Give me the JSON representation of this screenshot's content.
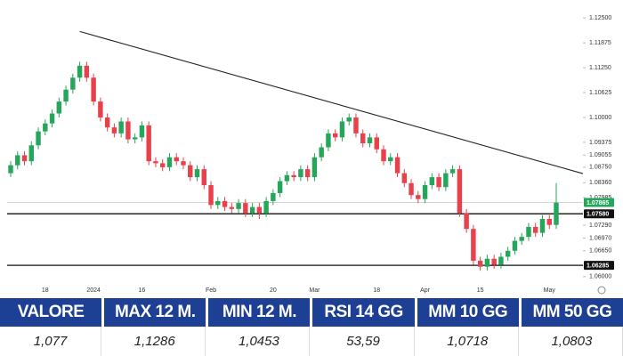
{
  "chart_data": {
    "type": "candlestick",
    "categories": [
      null,
      null,
      null,
      null,
      null,
      "18",
      null,
      null,
      null,
      null,
      null,
      null,
      "2024",
      null,
      null,
      null,
      null,
      null,
      null,
      "16",
      null,
      null,
      null,
      null,
      null,
      null,
      null,
      null,
      null,
      "Feb",
      null,
      null,
      null,
      null,
      null,
      null,
      null,
      null,
      "20",
      null,
      null,
      null,
      null,
      null,
      "Mar",
      null,
      null,
      null,
      null,
      null,
      null,
      null,
      null,
      "18",
      null,
      null,
      null,
      null,
      null,
      null,
      "Apr",
      null,
      null,
      null,
      null,
      null,
      null,
      null,
      "15",
      null,
      null,
      null,
      null,
      null,
      null,
      null,
      null,
      null,
      "May",
      null
    ],
    "open": [
      1.086,
      1.088,
      1.0905,
      1.089,
      1.093,
      1.0965,
      1.0985,
      1.101,
      1.104,
      1.107,
      1.11,
      1.113,
      1.11,
      1.104,
      1.1,
      1.0975,
      1.096,
      1.099,
      1.0945,
      1.095,
      1.098,
      1.089,
      1.0885,
      1.0875,
      1.09,
      1.089,
      1.088,
      1.085,
      1.087,
      1.083,
      1.078,
      1.079,
      1.0775,
      1.077,
      1.0785,
      1.076,
      1.0775,
      1.076,
      1.079,
      1.081,
      1.084,
      1.0855,
      1.085,
      1.087,
      1.085,
      1.09,
      1.0925,
      1.096,
      1.095,
      1.099,
      1.1,
      1.096,
      1.0935,
      1.095,
      1.092,
      1.089,
      1.09,
      1.086,
      1.0835,
      1.0805,
      1.0795,
      1.083,
      1.085,
      1.0825,
      1.086,
      1.087,
      1.076,
      1.072,
      1.064,
      1.0625,
      1.0645,
      1.063,
      1.065,
      1.0665,
      1.069,
      1.07,
      1.0725,
      1.071,
      1.0745,
      1.073
    ],
    "high": [
      1.089,
      1.0915,
      1.0915,
      1.094,
      1.0975,
      1.0995,
      1.102,
      1.105,
      1.108,
      1.111,
      1.114,
      1.114,
      1.111,
      1.105,
      1.101,
      1.0985,
      1.1,
      1.1,
      1.096,
      1.099,
      1.099,
      1.09,
      1.0895,
      1.091,
      1.091,
      1.09,
      1.089,
      1.088,
      1.088,
      1.084,
      1.08,
      1.08,
      1.0785,
      1.0795,
      1.0795,
      1.0785,
      1.0785,
      1.08,
      1.082,
      1.085,
      1.0865,
      1.0865,
      1.088,
      1.088,
      1.091,
      1.0935,
      1.097,
      1.097,
      1.1,
      1.101,
      1.101,
      1.097,
      1.096,
      1.096,
      1.093,
      1.091,
      1.091,
      1.087,
      1.0845,
      1.0815,
      1.084,
      1.086,
      1.086,
      1.087,
      1.088,
      1.088,
      1.077,
      1.073,
      1.065,
      1.0655,
      1.0655,
      1.066,
      1.0675,
      1.07,
      1.071,
      1.0735,
      1.0735,
      1.0755,
      1.0755,
      1.0835
    ],
    "low": [
      1.085,
      1.087,
      1.088,
      1.088,
      1.092,
      1.0955,
      1.0975,
      1.1,
      1.103,
      1.106,
      1.109,
      1.109,
      1.103,
      1.099,
      1.0965,
      1.095,
      1.095,
      1.0935,
      1.0935,
      1.094,
      1.088,
      1.0875,
      1.0865,
      1.0865,
      1.088,
      1.087,
      1.084,
      1.084,
      1.082,
      1.077,
      1.077,
      1.0765,
      1.076,
      1.076,
      1.075,
      1.075,
      1.0745,
      1.075,
      1.078,
      1.08,
      1.083,
      1.084,
      1.084,
      1.084,
      1.084,
      1.089,
      1.0915,
      1.094,
      1.094,
      1.098,
      1.095,
      1.0925,
      1.0925,
      1.091,
      1.088,
      1.088,
      1.085,
      1.0825,
      1.0795,
      1.0785,
      1.0785,
      1.082,
      1.0815,
      1.0815,
      1.085,
      1.075,
      1.071,
      1.063,
      1.0615,
      1.0615,
      1.062,
      1.062,
      1.064,
      1.0655,
      1.068,
      1.069,
      1.07,
      1.07,
      1.072,
      1.072
    ],
    "close": [
      1.088,
      1.0905,
      1.089,
      1.093,
      1.0965,
      1.0985,
      1.101,
      1.104,
      1.107,
      1.11,
      1.113,
      1.11,
      1.104,
      1.1,
      1.0975,
      1.096,
      1.099,
      1.0945,
      1.095,
      1.098,
      1.089,
      1.0885,
      1.0875,
      1.09,
      1.089,
      1.088,
      1.085,
      1.087,
      1.083,
      1.078,
      1.079,
      1.0775,
      1.077,
      1.0785,
      1.076,
      1.0775,
      1.076,
      1.079,
      1.081,
      1.084,
      1.0855,
      1.085,
      1.087,
      1.085,
      1.09,
      1.0925,
      1.096,
      1.095,
      1.099,
      1.1,
      1.096,
      1.0935,
      1.095,
      1.092,
      1.089,
      1.09,
      1.086,
      1.0835,
      1.0805,
      1.0795,
      1.083,
      1.085,
      1.0825,
      1.086,
      1.087,
      1.076,
      1.072,
      1.064,
      1.0625,
      1.0645,
      1.063,
      1.065,
      1.0665,
      1.069,
      1.07,
      1.0725,
      1.071,
      1.0745,
      1.073,
      1.0786
    ],
    "up_color": "#26a65b",
    "down_color": "#e8414b",
    "ylim": [
      1.0584,
      1.1284
    ],
    "yticks": [
      {
        "value": 1.125,
        "label": "1.12500"
      },
      1.11875,
      {
        "value": 1.1125,
        "label": "1.11250"
      },
      {
        "value": 1.10625,
        "label": "1.10625"
      },
      {
        "value": 1.1,
        "label": "1.10000"
      },
      1.09375,
      1.09055,
      {
        "value": 1.0875,
        "label": "1.08750"
      },
      {
        "value": 1.0836,
        "label": "1.08360"
      },
      1.07985,
      {
        "value": 1.0729,
        "label": "1.07290"
      },
      {
        "value": 1.0697,
        "label": "1.06970"
      },
      {
        "value": 1.0665,
        "label": "1.06650"
      },
      {
        "value": 1.06,
        "label": "1.06000"
      }
    ],
    "levels": [
      {
        "value": 1.07865,
        "label": "1.07865",
        "color": "#26a65b"
      },
      {
        "value": 1.0758,
        "label": "1.07580",
        "color": "#111111"
      },
      {
        "value": 1.06285,
        "label": "1.06285",
        "color": "#111111"
      }
    ],
    "trendline": [
      1.1216,
      1.0859
    ]
  },
  "table": {
    "headers": [
      "VALORE",
      "MAX 12 M.",
      "MIN 12 M.",
      "RSI 14 GG",
      "MM 10 GG",
      "MM 50 GG"
    ],
    "values": [
      "1,077",
      "1,1286",
      "1,0453",
      "53,59",
      "1,0718",
      "1,0803"
    ]
  }
}
